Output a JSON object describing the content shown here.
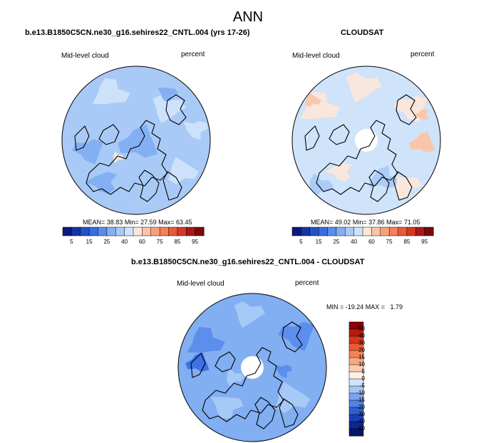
{
  "figure": {
    "title": "ANN"
  },
  "panels": [
    {
      "title": "b.e13.B1850C5CN.ne30_g16.sehires22_CNTL.004 (yrs 17-26)",
      "variable_label": "Mid-level cloud",
      "units_label": "percent",
      "stats": {
        "mean_label": "MEAN=",
        "mean": "38.83",
        "min_label": "Min=",
        "min": "27.59",
        "max_label": "Max=",
        "max": "63.45"
      }
    },
    {
      "title": "CLOUDSAT",
      "variable_label": "Mid-level cloud",
      "units_label": "percent",
      "stats": {
        "mean_label": "MEAN=",
        "mean": "49.02",
        "min_label": "Min=",
        "min": "37.86",
        "max_label": "Max=",
        "max": "71.05"
      }
    },
    {
      "title": "b.e13.B1850C5CN.ne30_g16.sehires22_CNTL.004 - CLOUDSAT",
      "variable_label": "Mid-level cloud",
      "units_label": "percent",
      "stats_text": "MIN = -19.24 MAX =   1.79"
    }
  ],
  "chart_data": [
    {
      "type": "heatmap",
      "projection": "north polar stereographic",
      "title": "b.e13.B1850C5CN.ne30_g16.sehires22_CNTL.004 (yrs 17-26)",
      "field": "Mid-level cloud",
      "units": "percent",
      "mean": 38.83,
      "min": 27.59,
      "max": 63.45,
      "colorbar_ticks": [
        "5",
        "15",
        "25",
        "40",
        "60",
        "75",
        "85",
        "95"
      ],
      "colorbar_colors": [
        "#0a1b7a",
        "#1434a0",
        "#2052c8",
        "#3a6ee0",
        "#5a8cec",
        "#82aef2",
        "#a9caf6",
        "#cfe3fa",
        "#fbe6da",
        "#fbc4a6",
        "#f8a27c",
        "#f47f58",
        "#e85a3a",
        "#d33a26",
        "#a81818",
        "#7a0a0a"
      ]
    },
    {
      "type": "heatmap",
      "projection": "north polar stereographic",
      "title": "CLOUDSAT",
      "field": "Mid-level cloud",
      "units": "percent",
      "mean": 49.02,
      "min": 37.86,
      "max": 71.05,
      "colorbar_ticks": [
        "5",
        "15",
        "25",
        "40",
        "60",
        "75",
        "85",
        "95"
      ],
      "colorbar_colors": [
        "#0a1b7a",
        "#1434a0",
        "#2052c8",
        "#3a6ee0",
        "#5a8cec",
        "#82aef2",
        "#a9caf6",
        "#cfe3fa",
        "#fbe6da",
        "#fbc4a6",
        "#f8a27c",
        "#f47f58",
        "#e85a3a",
        "#d33a26",
        "#a81818",
        "#7a0a0a"
      ]
    },
    {
      "type": "heatmap",
      "projection": "north polar stereographic",
      "title": "b.e13.B1850C5CN.ne30_g16.sehires22_CNTL.004 - CLOUDSAT",
      "field": "Mid-level cloud",
      "units": "percent",
      "min": -19.24,
      "max": 1.79,
      "colorbar_ticks": [
        "50",
        "40",
        "30",
        "20",
        "15",
        "10",
        "5",
        "0",
        "-5",
        "-10",
        "-15",
        "-20",
        "-30",
        "-40",
        "-50"
      ],
      "colorbar_colors": [
        "#8b0000",
        "#b51c0e",
        "#d8361c",
        "#ec5a30",
        "#f58258",
        "#f9a884",
        "#fccbb2",
        "#fdf1e6",
        "#d2e4fb",
        "#a6c6f4",
        "#7ca4ec",
        "#5282e2",
        "#2f5fd6",
        "#1a3fb8",
        "#0e268e",
        "#06156a"
      ]
    }
  ]
}
